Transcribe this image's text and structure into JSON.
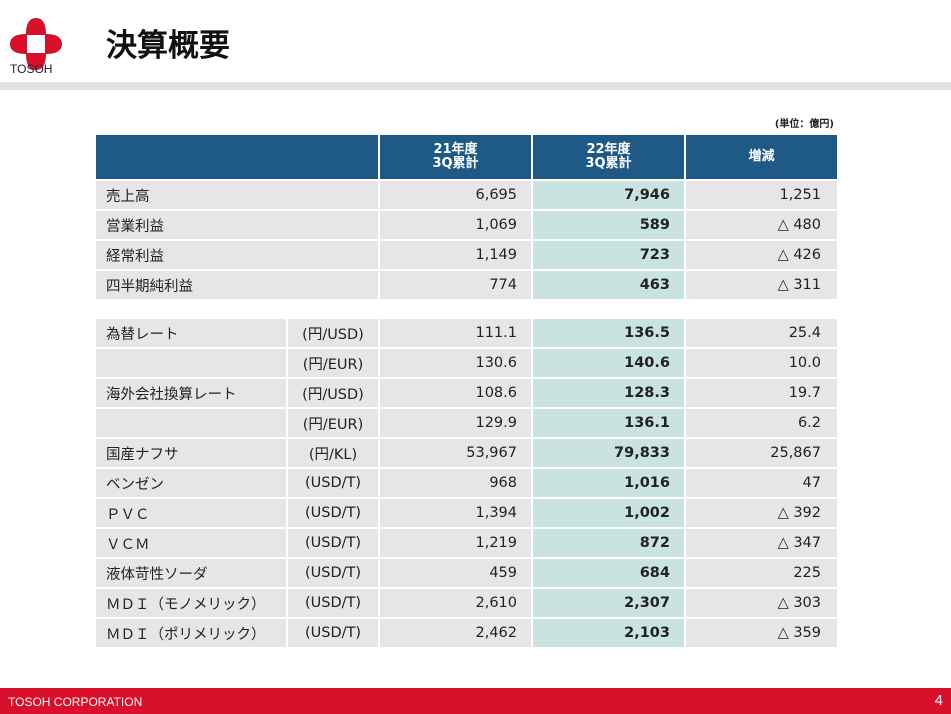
{
  "header": {
    "logo_text": "TOSOH",
    "title": "決算概要",
    "unit_note": "(単位：億円)",
    "brand_color": "#d8102c",
    "table_header_color": "#1f5a87"
  },
  "table1": {
    "headers": [
      "",
      "21年度\n3Q累計",
      "22年度\n3Q累計",
      "増減"
    ],
    "rows": [
      {
        "label": "売上高",
        "prev": "6,695",
        "curr": "7,946",
        "diff": "1,251"
      },
      {
        "label": "営業利益",
        "prev": "1,069",
        "curr": "589",
        "diff": "△ 480"
      },
      {
        "label": "経常利益",
        "prev": "1,149",
        "curr": "723",
        "diff": "△ 426"
      },
      {
        "label": "四半期純利益",
        "prev": "774",
        "curr": "463",
        "diff": "△ 311"
      }
    ]
  },
  "table2": {
    "rows": [
      {
        "label": "為替レート",
        "unit": "(円/USD)",
        "prev": "111.1",
        "curr": "136.5",
        "diff": "25.4"
      },
      {
        "label": "",
        "unit": "(円/EUR)",
        "prev": "130.6",
        "curr": "140.6",
        "diff": "10.0"
      },
      {
        "label": "海外会社換算レート",
        "unit": "(円/USD)",
        "prev": "108.6",
        "curr": "128.3",
        "diff": "19.7"
      },
      {
        "label": "",
        "unit": "(円/EUR)",
        "prev": "129.9",
        "curr": "136.1",
        "diff": "6.2"
      },
      {
        "label": "国産ナフサ",
        "unit": "(円/KL)",
        "prev": "53,967",
        "curr": "79,833",
        "diff": "25,867"
      },
      {
        "label": "ベンゼン",
        "unit": "(USD/T)",
        "prev": "968",
        "curr": "1,016",
        "diff": "47"
      },
      {
        "label": "ＰＶＣ",
        "unit": "(USD/T)",
        "prev": "1,394",
        "curr": "1,002",
        "diff": "△ 392"
      },
      {
        "label": "ＶＣＭ",
        "unit": "(USD/T)",
        "prev": "1,219",
        "curr": "872",
        "diff": "△ 347"
      },
      {
        "label": "液体苛性ソーダ",
        "unit": "(USD/T)",
        "prev": "459",
        "curr": "684",
        "diff": "225"
      },
      {
        "label": "ＭＤＩ（モノメリック）",
        "unit": "(USD/T)",
        "prev": "2,610",
        "curr": "2,307",
        "diff": "△ 303"
      },
      {
        "label": "ＭＤＩ（ポリメリック）",
        "unit": "(USD/T)",
        "prev": "2,462",
        "curr": "2,103",
        "diff": "△ 359"
      }
    ]
  },
  "footer": {
    "company": "TOSOH CORPORATION",
    "page": "4"
  }
}
